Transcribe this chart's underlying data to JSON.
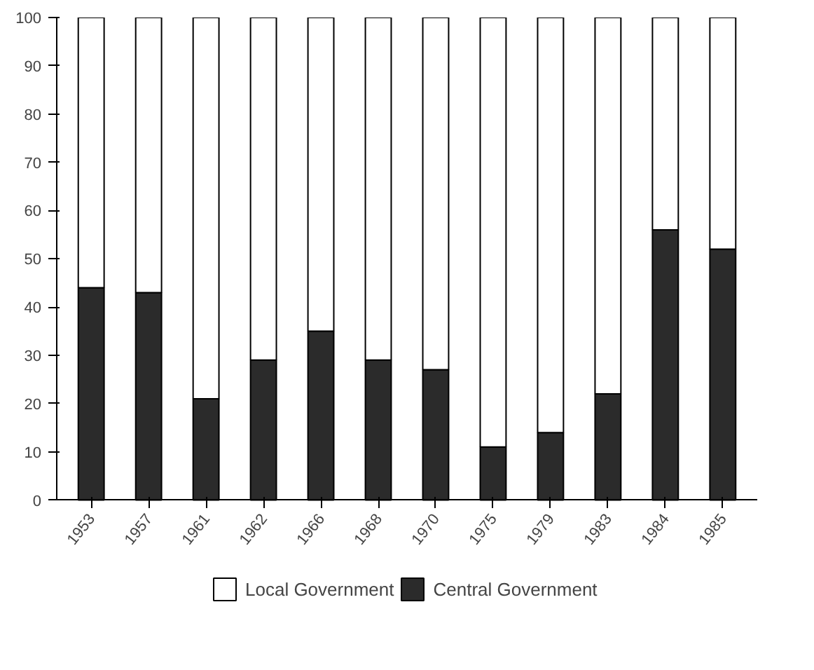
{
  "chart_data": {
    "type": "bar",
    "stacked": true,
    "categories": [
      "1953",
      "1957",
      "1961",
      "1962",
      "1966",
      "1968",
      "1970",
      "1975",
      "1979",
      "1983",
      "1984",
      "1985"
    ],
    "series": [
      {
        "name": "Central Government",
        "color": "#2b2b2b",
        "values": [
          44,
          43,
          21,
          29,
          35,
          29,
          27,
          11,
          14,
          22,
          56,
          52
        ]
      },
      {
        "name": "Local Government",
        "color": "#ffffff",
        "values": [
          56,
          57,
          79,
          71,
          65,
          71,
          73,
          89,
          86,
          78,
          44,
          48
        ]
      }
    ],
    "ylim": [
      0,
      100
    ],
    "yticks": [
      0,
      10,
      20,
      30,
      40,
      50,
      60,
      70,
      80,
      90,
      100
    ],
    "grid": false,
    "legend": "bottom"
  }
}
